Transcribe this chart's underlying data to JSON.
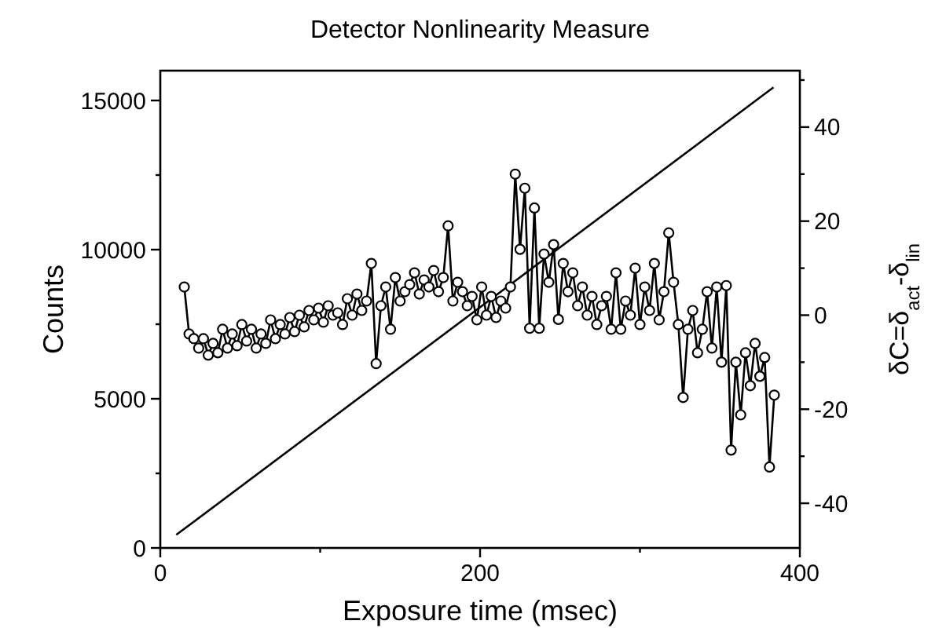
{
  "chart_data": {
    "type": "line",
    "title": "Detector Nonlinearity Measure",
    "xlabel": "Exposure time (msec)",
    "ylabel": "Counts",
    "y2label": "δC=δ$_{act}$-δ$_{lin}$",
    "xlim": [
      0,
      400
    ],
    "xticks": [
      0,
      {
        "value": 100,
        "label": null
      },
      200,
      {
        "value": 300,
        "label": null
      },
      400
    ],
    "ylim": [
      0,
      16000
    ],
    "yticks": [
      0,
      {
        "value": 2500,
        "label": null
      },
      5000,
      {
        "value": 7500,
        "label": null
      },
      10000,
      {
        "value": 12500,
        "label": null
      },
      15000
    ],
    "y2lim": [
      -49.5,
      52
    ],
    "y2ticks": [
      -40,
      {
        "value": -30,
        "label": null
      },
      -20,
      {
        "value": -10,
        "label": null
      },
      0,
      {
        "value": 10,
        "label": null
      },
      20,
      {
        "value": 30,
        "label": null
      },
      40,
      {
        "value": 50,
        "label": null
      }
    ],
    "grid": false,
    "series": [
      {
        "color": "#000000",
        "marker": "none",
        "x": [
          10,
          383.5
        ],
        "values": [
          440,
          15440
        ]
      },
      {
        "color": "#000000",
        "marker": "circle",
        "axis": "y2",
        "x": [
          15,
          18,
          21,
          24,
          27,
          30,
          33,
          36,
          39,
          42,
          45,
          48,
          51,
          54,
          57,
          60,
          63,
          66,
          69,
          72,
          75,
          78,
          81,
          84,
          87,
          90,
          93,
          96,
          99,
          102,
          105,
          108,
          111,
          114,
          117,
          120,
          123,
          126,
          129,
          132,
          135,
          138,
          141,
          144,
          147,
          150,
          153,
          156,
          159,
          162,
          165,
          168,
          171,
          174,
          177,
          180,
          183,
          186,
          189,
          192,
          195,
          198,
          201,
          204,
          207,
          210,
          213,
          216,
          219,
          222,
          225,
          228,
          231,
          234,
          237,
          240,
          243,
          246,
          249,
          252,
          255,
          258,
          261,
          264,
          267,
          270,
          273,
          276,
          279,
          282,
          285,
          288,
          291,
          294,
          297,
          300,
          303,
          306,
          309,
          312,
          315,
          318,
          321,
          324,
          327,
          330,
          333,
          336,
          339,
          342,
          345,
          348,
          351,
          354,
          357,
          360,
          363,
          366,
          369,
          372,
          375,
          378,
          381,
          384
        ],
        "values": [
          6,
          -4,
          -5,
          -7,
          -5,
          -8.5,
          -6,
          -8,
          -3,
          -7,
          -4,
          -6.5,
          -2,
          -5.5,
          -3,
          -7,
          -4,
          -6,
          -1,
          -5,
          -2,
          -4,
          -0.5,
          -3.5,
          0,
          -2.5,
          1,
          -1,
          1.5,
          -1.5,
          2,
          0,
          0.5,
          -2,
          3.5,
          0,
          4.5,
          1,
          3,
          11,
          -10.3,
          2,
          6,
          -3,
          8,
          3,
          5,
          6.5,
          9,
          4.5,
          7.5,
          6,
          9.5,
          5,
          8,
          19,
          3,
          7,
          5,
          2,
          4,
          -1,
          6,
          0,
          4,
          -0.5,
          3,
          1.5,
          6,
          30,
          14,
          27,
          -2.8,
          22.8,
          -2.8,
          13,
          7,
          15,
          -0.9,
          11,
          5,
          9,
          2,
          6,
          0,
          4,
          -2,
          2,
          4,
          -3,
          9,
          -3,
          3,
          0,
          10,
          -2,
          6,
          1,
          11,
          -1,
          5,
          17.5,
          7,
          -2,
          -17.5,
          -3,
          1,
          -8,
          -3,
          5,
          -7,
          6,
          -10,
          6.3,
          -28.7,
          -10,
          -21.2,
          -8,
          -15,
          -6,
          -13,
          -9,
          -32.3,
          -17
        ]
      }
    ]
  }
}
